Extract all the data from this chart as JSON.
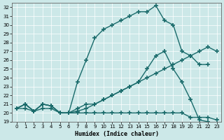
{
  "xlabel": "Humidex (Indice chaleur)",
  "xlim": [
    -0.5,
    23.5
  ],
  "ylim": [
    19,
    32.5
  ],
  "xticks": [
    0,
    1,
    2,
    3,
    4,
    5,
    6,
    7,
    8,
    9,
    10,
    11,
    12,
    13,
    14,
    15,
    16,
    17,
    18,
    19,
    20,
    21,
    22,
    23
  ],
  "yticks": [
    19,
    20,
    21,
    22,
    23,
    24,
    25,
    26,
    27,
    28,
    29,
    30,
    31,
    32
  ],
  "bg_color": "#cce8e8",
  "line_color": "#1a6b6b",
  "line_width": 1.0,
  "marker": "+",
  "marker_size": 5,
  "marker_lw": 1.2,
  "series": [
    {
      "x": [
        0,
        1,
        2,
        3,
        4,
        5,
        6,
        7,
        8,
        9,
        10,
        11,
        12,
        13,
        14,
        15,
        16,
        17,
        18,
        19,
        20,
        21,
        22
      ],
      "y": [
        20.5,
        21.0,
        20.2,
        21.0,
        20.8,
        20.0,
        20.0,
        23.5,
        26.0,
        28.5,
        29.5,
        30.0,
        30.5,
        31.0,
        31.5,
        31.5,
        32.2,
        30.5,
        30.0,
        27.0,
        26.5,
        25.5,
        25.5
      ]
    },
    {
      "x": [
        0,
        1,
        2,
        3,
        4,
        5,
        6,
        7,
        8,
        9,
        10,
        11,
        12,
        13,
        14,
        15,
        16,
        17,
        18,
        19,
        20,
        21,
        22
      ],
      "y": [
        20.5,
        21.0,
        20.2,
        21.0,
        20.8,
        20.0,
        20.0,
        20.5,
        21.0,
        21.0,
        21.5,
        22.0,
        22.5,
        23.0,
        23.5,
        25.0,
        26.5,
        27.0,
        25.0,
        23.5,
        21.5,
        19.2,
        19.0
      ]
    },
    {
      "x": [
        0,
        1,
        2,
        3,
        4,
        5,
        6,
        7,
        8,
        9,
        10,
        11,
        12,
        13,
        14,
        15,
        16,
        17,
        18,
        19,
        20,
        21,
        22,
        23
      ],
      "y": [
        20.5,
        21.0,
        20.2,
        21.0,
        20.8,
        20.0,
        20.0,
        20.2,
        20.5,
        21.0,
        21.5,
        22.0,
        22.5,
        23.0,
        23.5,
        24.0,
        24.5,
        25.0,
        25.5,
        26.0,
        26.5,
        27.0,
        27.5,
        27.0
      ]
    },
    {
      "x": [
        0,
        1,
        2,
        3,
        4,
        5,
        6,
        7,
        8,
        9,
        10,
        11,
        12,
        13,
        14,
        15,
        16,
        17,
        18,
        19,
        20,
        21,
        22,
        23
      ],
      "y": [
        20.5,
        20.5,
        20.2,
        20.5,
        20.5,
        20.0,
        20.0,
        20.0,
        20.0,
        20.0,
        20.0,
        20.0,
        20.0,
        20.0,
        20.0,
        20.0,
        20.0,
        20.0,
        20.0,
        20.0,
        19.5,
        19.5,
        19.5,
        19.2
      ]
    }
  ]
}
